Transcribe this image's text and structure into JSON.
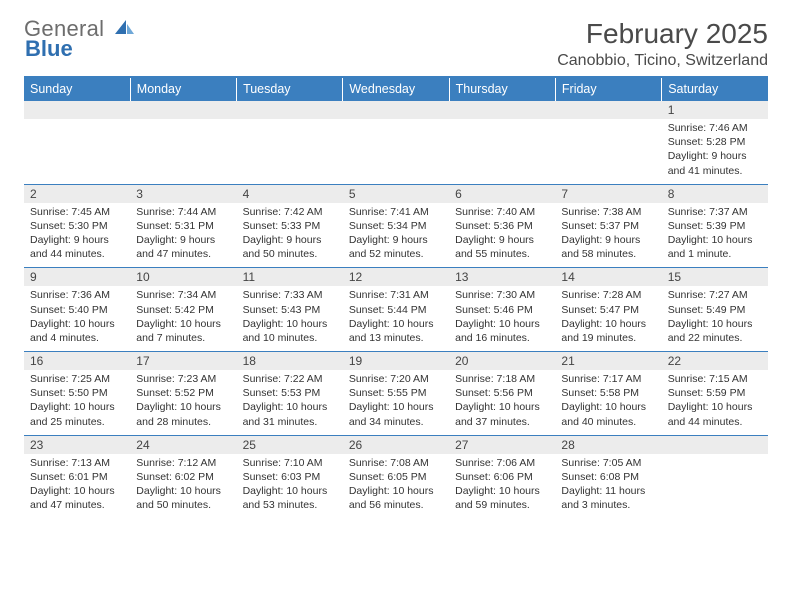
{
  "brand": {
    "line1": "General",
    "line2": "Blue"
  },
  "header": {
    "month_title": "February 2025",
    "location": "Canobbio, Ticino, Switzerland"
  },
  "colors": {
    "accent": "#3b7fbf",
    "header_bg": "#3b7fbf",
    "header_fg": "#ffffff",
    "daynum_bg": "#ececec",
    "text": "#333333",
    "logo_gray": "#6d6d6d",
    "logo_blue": "#2f6fb0"
  },
  "day_headers": [
    "Sunday",
    "Monday",
    "Tuesday",
    "Wednesday",
    "Thursday",
    "Friday",
    "Saturday"
  ],
  "weeks": [
    [
      {
        "blank": true
      },
      {
        "blank": true
      },
      {
        "blank": true
      },
      {
        "blank": true
      },
      {
        "blank": true
      },
      {
        "blank": true
      },
      {
        "n": "1",
        "sr": "Sunrise: 7:46 AM",
        "ss": "Sunset: 5:28 PM",
        "dl": "Daylight: 9 hours and 41 minutes."
      }
    ],
    [
      {
        "n": "2",
        "sr": "Sunrise: 7:45 AM",
        "ss": "Sunset: 5:30 PM",
        "dl": "Daylight: 9 hours and 44 minutes."
      },
      {
        "n": "3",
        "sr": "Sunrise: 7:44 AM",
        "ss": "Sunset: 5:31 PM",
        "dl": "Daylight: 9 hours and 47 minutes."
      },
      {
        "n": "4",
        "sr": "Sunrise: 7:42 AM",
        "ss": "Sunset: 5:33 PM",
        "dl": "Daylight: 9 hours and 50 minutes."
      },
      {
        "n": "5",
        "sr": "Sunrise: 7:41 AM",
        "ss": "Sunset: 5:34 PM",
        "dl": "Daylight: 9 hours and 52 minutes."
      },
      {
        "n": "6",
        "sr": "Sunrise: 7:40 AM",
        "ss": "Sunset: 5:36 PM",
        "dl": "Daylight: 9 hours and 55 minutes."
      },
      {
        "n": "7",
        "sr": "Sunrise: 7:38 AM",
        "ss": "Sunset: 5:37 PM",
        "dl": "Daylight: 9 hours and 58 minutes."
      },
      {
        "n": "8",
        "sr": "Sunrise: 7:37 AM",
        "ss": "Sunset: 5:39 PM",
        "dl": "Daylight: 10 hours and 1 minute."
      }
    ],
    [
      {
        "n": "9",
        "sr": "Sunrise: 7:36 AM",
        "ss": "Sunset: 5:40 PM",
        "dl": "Daylight: 10 hours and 4 minutes."
      },
      {
        "n": "10",
        "sr": "Sunrise: 7:34 AM",
        "ss": "Sunset: 5:42 PM",
        "dl": "Daylight: 10 hours and 7 minutes."
      },
      {
        "n": "11",
        "sr": "Sunrise: 7:33 AM",
        "ss": "Sunset: 5:43 PM",
        "dl": "Daylight: 10 hours and 10 minutes."
      },
      {
        "n": "12",
        "sr": "Sunrise: 7:31 AM",
        "ss": "Sunset: 5:44 PM",
        "dl": "Daylight: 10 hours and 13 minutes."
      },
      {
        "n": "13",
        "sr": "Sunrise: 7:30 AM",
        "ss": "Sunset: 5:46 PM",
        "dl": "Daylight: 10 hours and 16 minutes."
      },
      {
        "n": "14",
        "sr": "Sunrise: 7:28 AM",
        "ss": "Sunset: 5:47 PM",
        "dl": "Daylight: 10 hours and 19 minutes."
      },
      {
        "n": "15",
        "sr": "Sunrise: 7:27 AM",
        "ss": "Sunset: 5:49 PM",
        "dl": "Daylight: 10 hours and 22 minutes."
      }
    ],
    [
      {
        "n": "16",
        "sr": "Sunrise: 7:25 AM",
        "ss": "Sunset: 5:50 PM",
        "dl": "Daylight: 10 hours and 25 minutes."
      },
      {
        "n": "17",
        "sr": "Sunrise: 7:23 AM",
        "ss": "Sunset: 5:52 PM",
        "dl": "Daylight: 10 hours and 28 minutes."
      },
      {
        "n": "18",
        "sr": "Sunrise: 7:22 AM",
        "ss": "Sunset: 5:53 PM",
        "dl": "Daylight: 10 hours and 31 minutes."
      },
      {
        "n": "19",
        "sr": "Sunrise: 7:20 AM",
        "ss": "Sunset: 5:55 PM",
        "dl": "Daylight: 10 hours and 34 minutes."
      },
      {
        "n": "20",
        "sr": "Sunrise: 7:18 AM",
        "ss": "Sunset: 5:56 PM",
        "dl": "Daylight: 10 hours and 37 minutes."
      },
      {
        "n": "21",
        "sr": "Sunrise: 7:17 AM",
        "ss": "Sunset: 5:58 PM",
        "dl": "Daylight: 10 hours and 40 minutes."
      },
      {
        "n": "22",
        "sr": "Sunrise: 7:15 AM",
        "ss": "Sunset: 5:59 PM",
        "dl": "Daylight: 10 hours and 44 minutes."
      }
    ],
    [
      {
        "n": "23",
        "sr": "Sunrise: 7:13 AM",
        "ss": "Sunset: 6:01 PM",
        "dl": "Daylight: 10 hours and 47 minutes."
      },
      {
        "n": "24",
        "sr": "Sunrise: 7:12 AM",
        "ss": "Sunset: 6:02 PM",
        "dl": "Daylight: 10 hours and 50 minutes."
      },
      {
        "n": "25",
        "sr": "Sunrise: 7:10 AM",
        "ss": "Sunset: 6:03 PM",
        "dl": "Daylight: 10 hours and 53 minutes."
      },
      {
        "n": "26",
        "sr": "Sunrise: 7:08 AM",
        "ss": "Sunset: 6:05 PM",
        "dl": "Daylight: 10 hours and 56 minutes."
      },
      {
        "n": "27",
        "sr": "Sunrise: 7:06 AM",
        "ss": "Sunset: 6:06 PM",
        "dl": "Daylight: 10 hours and 59 minutes."
      },
      {
        "n": "28",
        "sr": "Sunrise: 7:05 AM",
        "ss": "Sunset: 6:08 PM",
        "dl": "Daylight: 11 hours and 3 minutes."
      },
      {
        "blank": true
      }
    ]
  ]
}
